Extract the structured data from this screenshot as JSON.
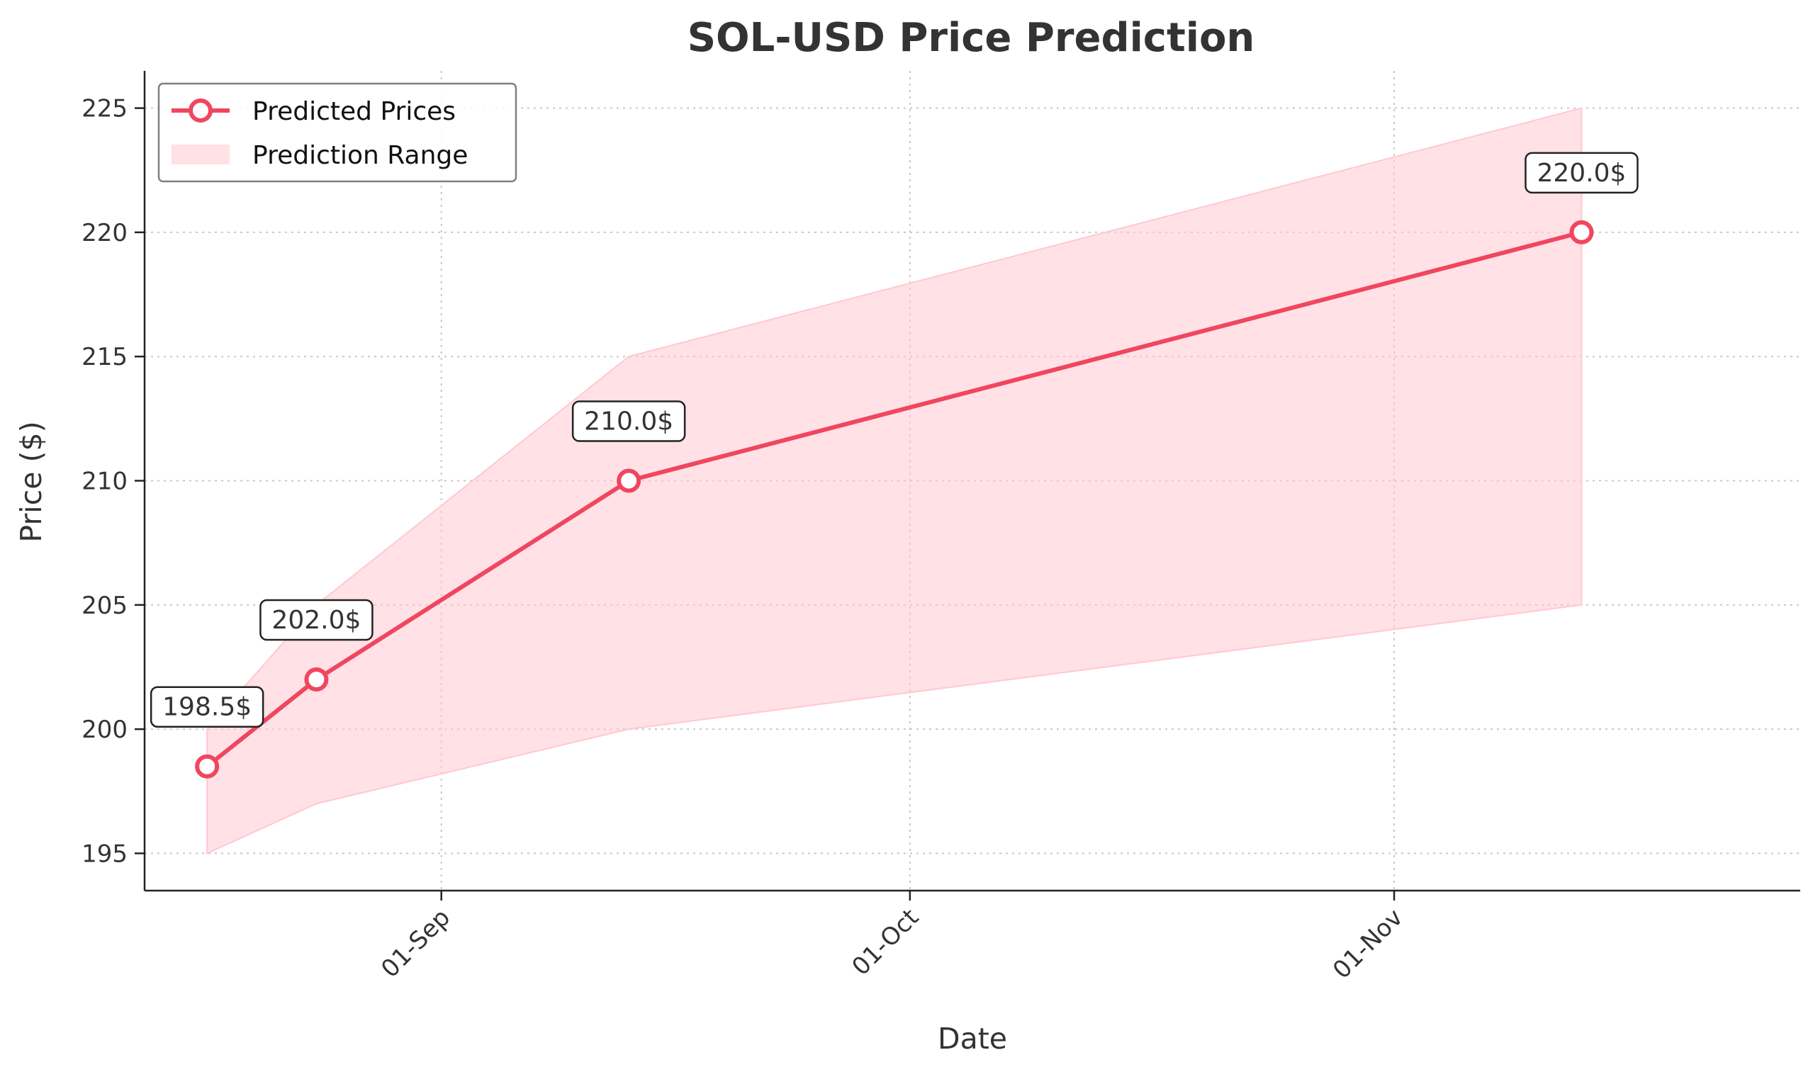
{
  "chart_data": {
    "type": "line",
    "title": "SOL-USD Price Prediction",
    "xlabel": "Date",
    "ylabel": "Price ($)",
    "x_tick_labels": [
      {
        "date": "2024-09-01",
        "label": "01-Sep"
      },
      {
        "date": "2024-10-01",
        "label": "01-Oct"
      },
      {
        "date": "2024-11-01",
        "label": "01-Nov"
      }
    ],
    "y_ticks": [
      195,
      200,
      205,
      210,
      215,
      220,
      225
    ],
    "xlim": [
      "2024-08-13",
      "2024-11-27"
    ],
    "ylim": [
      193.5,
      226.5
    ],
    "grid": true,
    "legend_placement": "top-left",
    "series": [
      {
        "name": "Predicted Prices",
        "kind": "line",
        "color": "#f0465f",
        "points": [
          {
            "date": "2024-08-17",
            "value": 198.5,
            "label": "198.5$"
          },
          {
            "date": "2024-08-24",
            "value": 202.0,
            "label": "202.0$"
          },
          {
            "date": "2024-09-13",
            "value": 210.0,
            "label": "210.0$"
          },
          {
            "date": "2024-11-13",
            "value": 220.0,
            "label": "220.0$"
          }
        ]
      },
      {
        "name": "Prediction Range",
        "kind": "band",
        "color": "#ffc8d2",
        "points": [
          {
            "date": "2024-08-17",
            "low": 195.0,
            "high": 200.0
          },
          {
            "date": "2024-08-24",
            "low": 197.0,
            "high": 205.0
          },
          {
            "date": "2024-09-13",
            "low": 200.0,
            "high": 215.0
          },
          {
            "date": "2024-11-13",
            "low": 205.0,
            "high": 225.0
          }
        ]
      }
    ]
  }
}
